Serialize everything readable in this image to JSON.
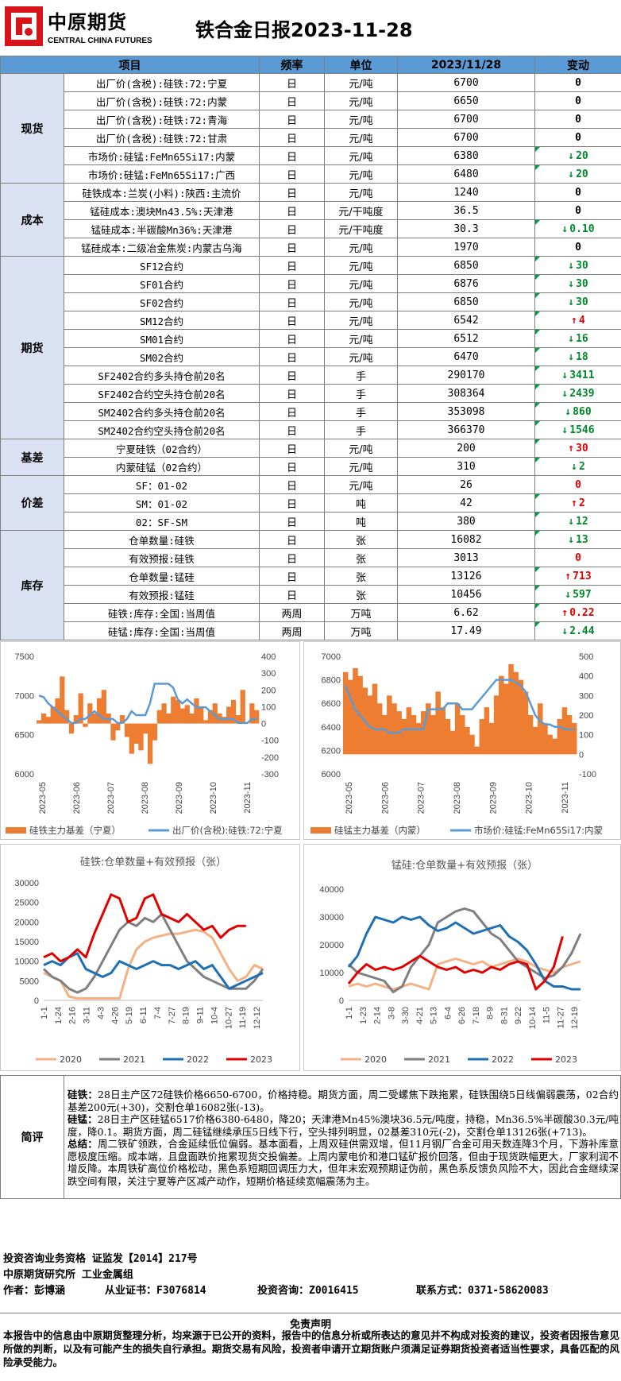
{
  "header": {
    "brand_cn": "中原期货",
    "brand_en": "CENTRAL CHINA FUTURES",
    "title": "铁合金日报2023-11-28"
  },
  "table": {
    "columns": [
      "项目",
      "频率",
      "单位",
      "2023/11/28",
      "变动"
    ],
    "sections": [
      {
        "name": "现货",
        "rows": [
          {
            "item": "出厂价(含税):硅铁:72:宁夏",
            "freq": "日",
            "unit": "元/吨",
            "value": "6700",
            "change": "0",
            "dir": "none"
          },
          {
            "item": "出厂价(含税):硅铁:72:内蒙",
            "freq": "日",
            "unit": "元/吨",
            "value": "6650",
            "change": "0",
            "dir": "none"
          },
          {
            "item": "出厂价(含税):硅铁:72:青海",
            "freq": "日",
            "unit": "元/吨",
            "value": "6700",
            "change": "0",
            "dir": "none"
          },
          {
            "item": "出厂价(含税):硅铁:72:甘肃",
            "freq": "日",
            "unit": "元/吨",
            "value": "6700",
            "change": "0",
            "dir": "none"
          },
          {
            "item": "市场价:硅锰:FeMn65Si17:内蒙",
            "freq": "日",
            "unit": "元/吨",
            "value": "6380",
            "change": "20",
            "dir": "down"
          },
          {
            "item": "市场价:硅锰:FeMn65Si17:广西",
            "freq": "日",
            "unit": "元/吨",
            "value": "6480",
            "change": "20",
            "dir": "down"
          }
        ]
      },
      {
        "name": "成本",
        "rows": [
          {
            "item": "硅铁成本:兰炭(小料):陕西:主流价",
            "freq": "日",
            "unit": "元/吨",
            "value": "1240",
            "change": "0",
            "dir": "none"
          },
          {
            "item": "锰硅成本:澳块Mn43.5%:天津港",
            "freq": "日",
            "unit": "元/干吨度",
            "value": "36.5",
            "change": "0",
            "dir": "none"
          },
          {
            "item": "锰硅成本:半碳酸Mn36%:天津港",
            "freq": "日",
            "unit": "元/干吨度",
            "value": "30.3",
            "change": "0.10",
            "dir": "down"
          },
          {
            "item": "锰硅成本:二级冶金焦炭:内蒙古乌海",
            "freq": "日",
            "unit": "元/吨",
            "value": "1970",
            "change": "0",
            "dir": "none"
          }
        ]
      },
      {
        "name": "期货",
        "rows": [
          {
            "item": "SF12合约",
            "freq": "日",
            "unit": "元/吨",
            "value": "6850",
            "change": "30",
            "dir": "down"
          },
          {
            "item": "SF01合约",
            "freq": "日",
            "unit": "元/吨",
            "value": "6876",
            "change": "30",
            "dir": "down"
          },
          {
            "item": "SF02合约",
            "freq": "日",
            "unit": "元/吨",
            "value": "6850",
            "change": "30",
            "dir": "down"
          },
          {
            "item": "SM12合约",
            "freq": "日",
            "unit": "元/吨",
            "value": "6542",
            "change": "4",
            "dir": "up"
          },
          {
            "item": "SM01合约",
            "freq": "日",
            "unit": "元/吨",
            "value": "6512",
            "change": "16",
            "dir": "down"
          },
          {
            "item": "SM02合约",
            "freq": "日",
            "unit": "元/吨",
            "value": "6470",
            "change": "18",
            "dir": "down"
          },
          {
            "item": "SF2402合约多头持仓前20名",
            "freq": "日",
            "unit": "手",
            "value": "290170",
            "change": "3411",
            "dir": "down"
          },
          {
            "item": "SF2402合约空头持仓前20名",
            "freq": "日",
            "unit": "手",
            "value": "308364",
            "change": "2439",
            "dir": "down"
          },
          {
            "item": "SM2402合约多头持仓前20名",
            "freq": "日",
            "unit": "手",
            "value": "353098",
            "change": "860",
            "dir": "down"
          },
          {
            "item": "SM2402合约空头持仓前20名",
            "freq": "日",
            "unit": "手",
            "value": "366370",
            "change": "1546",
            "dir": "down"
          }
        ]
      },
      {
        "name": "基差",
        "rows": [
          {
            "item": "宁夏硅铁（02合约）",
            "freq": "日",
            "unit": "元/吨",
            "value": "200",
            "change": "30",
            "dir": "up"
          },
          {
            "item": "内蒙硅锰（02合约）",
            "freq": "日",
            "unit": "元/吨",
            "value": "310",
            "change": "2",
            "dir": "down"
          }
        ]
      },
      {
        "name": "价差",
        "rows": [
          {
            "item": "SF：01-02",
            "freq": "日",
            "unit": "元/吨",
            "value": "26",
            "change": "0",
            "dir": "zero-red"
          },
          {
            "item": "SM：01-02",
            "freq": "日",
            "unit": "吨",
            "value": "42",
            "change": "2",
            "dir": "up"
          },
          {
            "item": "02：SF-SM",
            "freq": "日",
            "unit": "吨",
            "value": "380",
            "change": "12",
            "dir": "down"
          }
        ]
      },
      {
        "name": "库存",
        "rows": [
          {
            "item": "仓单数量:硅铁",
            "freq": "日",
            "unit": "张",
            "value": "16082",
            "change": "13",
            "dir": "down"
          },
          {
            "item": "有效预报:硅铁",
            "freq": "日",
            "unit": "张",
            "value": "3013",
            "change": "0",
            "dir": "zero-red"
          },
          {
            "item": "仓单数量:锰硅",
            "freq": "日",
            "unit": "张",
            "value": "13126",
            "change": "713",
            "dir": "up"
          },
          {
            "item": "有效预报:锰硅",
            "freq": "日",
            "unit": "张",
            "value": "10456",
            "change": "597",
            "dir": "down"
          },
          {
            "item": "硅铁:库存:全国:当周值",
            "freq": "两周",
            "unit": "万吨",
            "value": "6.62",
            "change": "0.22",
            "dir": "up"
          },
          {
            "item": "硅锰:库存:全国:当周值",
            "freq": "两周",
            "unit": "万吨",
            "value": "17.49",
            "change": "2.44",
            "dir": "down"
          }
        ]
      }
    ]
  },
  "chart_data": [
    {
      "type": "area+line",
      "title": "",
      "x_ticks": [
        "2023-05",
        "2023-06",
        "2023-07",
        "2023-08",
        "2023-09",
        "2023-10",
        "2023-11"
      ],
      "y_left_ticks": [
        "7500",
        "7000",
        "6500",
        "6000"
      ],
      "y_left_range": [
        6000,
        7500
      ],
      "y_right_ticks": [
        "400",
        "300",
        "200",
        "100",
        "0",
        "-100",
        "-200",
        "-300"
      ],
      "y_right_range": [
        -300,
        400
      ],
      "series": [
        {
          "name": "硅铁主力基差（宁夏）",
          "axis": "right",
          "type": "area",
          "color": "#ed7d31",
          "values": [
            20,
            60,
            40,
            100,
            150,
            280,
            80,
            -60,
            50,
            180,
            -20,
            120,
            60,
            150,
            200,
            60,
            -100,
            -40,
            50,
            -80,
            -180,
            -120,
            -160,
            -60,
            -240,
            -100,
            80,
            120,
            60,
            160,
            140,
            90,
            110,
            60,
            150,
            100,
            20,
            80,
            120,
            60,
            40,
            100,
            140,
            50,
            200,
            0,
            120,
            80
          ]
        },
        {
          "name": "出厂价(含税):硅铁:72:宁夏",
          "axis": "left",
          "type": "line",
          "color": "#5b9bd5",
          "values": [
            7000,
            6980,
            6900,
            6850,
            6800,
            6750,
            6700,
            6650,
            6650,
            6700,
            6700,
            6750,
            6800,
            6750,
            6700,
            6700,
            6700,
            6650,
            6650,
            6700,
            6800,
            6750,
            6750,
            6750,
            6900,
            7150,
            7150,
            7150,
            7150,
            7100,
            6950,
            6900,
            6950,
            6900,
            6850,
            6850,
            6850,
            6800,
            6750,
            6700,
            6700,
            6700,
            6700,
            6650,
            6650,
            6650,
            6700,
            6700
          ]
        }
      ]
    },
    {
      "type": "area+line",
      "title": "",
      "x_ticks": [
        "2023-05",
        "2023-06",
        "2023-07",
        "2023-08",
        "2023-09",
        "2023-10",
        "2023-11"
      ],
      "y_left_ticks": [
        "7000",
        "6800",
        "6600",
        "6400",
        "6200",
        "6000"
      ],
      "y_left_range": [
        6000,
        7000
      ],
      "y_right_ticks": [
        "500",
        "400",
        "300",
        "200",
        "100",
        "0",
        "-100"
      ],
      "y_right_range": [
        -100,
        500
      ],
      "series": [
        {
          "name": "硅锰主力基差（内蒙）",
          "axis": "right",
          "type": "area",
          "color": "#ed7d31",
          "values": [
            420,
            380,
            440,
            400,
            340,
            300,
            360,
            260,
            200,
            300,
            260,
            220,
            180,
            240,
            200,
            160,
            220,
            260,
            200,
            320,
            240,
            180,
            120,
            260,
            200,
            140,
            100,
            40,
            180,
            240,
            160,
            300,
            400,
            360,
            460,
            420,
            380,
            320,
            200,
            140,
            260,
            160,
            100,
            80,
            180,
            240,
            200,
            160
          ]
        },
        {
          "name": "市场价:硅锰:FeMn65Si17:内蒙",
          "axis": "left",
          "type": "line",
          "color": "#5b9bd5",
          "values": [
            6750,
            6650,
            6550,
            6500,
            6450,
            6400,
            6380,
            6380,
            6380,
            6350,
            6350,
            6350,
            6380,
            6380,
            6380,
            6380,
            6380,
            6550,
            6550,
            6550,
            6550,
            6600,
            6600,
            6600,
            6550,
            6550,
            6550,
            6600,
            6650,
            6700,
            6750,
            6800,
            6800,
            6800,
            6800,
            6780,
            6750,
            6700,
            6600,
            6500,
            6450,
            6420,
            6420,
            6400,
            6400,
            6380,
            6380,
            6380
          ]
        }
      ]
    },
    {
      "type": "line",
      "title": "硅铁:仓单数量+有效预报（张）",
      "x_ticks": [
        "1-1",
        "1-24",
        "2-16",
        "3-11",
        "4-3",
        "4-26",
        "5-19",
        "6-11",
        "7-4",
        "7-27",
        "8-19",
        "9-11",
        "10-4",
        "10-27",
        "11-19",
        "12-12"
      ],
      "y_ticks": [
        "30000",
        "25000",
        "20000",
        "15000",
        "10000",
        "5000",
        "0"
      ],
      "y_range": [
        0,
        30000
      ],
      "series": [
        {
          "name": "2020",
          "color": "#f4b183",
          "values": [
            7000,
            6000,
            5000,
            1000,
            500,
            500,
            500,
            500,
            500,
            500,
            8000,
            13000,
            15000,
            16000,
            16500,
            17000,
            17000,
            17500,
            18000,
            17500,
            16000,
            12000,
            8000,
            5000,
            6000,
            9000,
            8000
          ]
        },
        {
          "name": "2021",
          "color": "#7f7f7f",
          "values": [
            8000,
            6000,
            5000,
            3000,
            2000,
            3000,
            6000,
            10000,
            14000,
            18000,
            20000,
            19000,
            21000,
            20000,
            22000,
            18000,
            14000,
            10000,
            8000,
            6000,
            5000,
            4000,
            3000,
            3000,
            3000,
            5000,
            8000
          ]
        },
        {
          "name": "2022",
          "color": "#1f6fb5",
          "values": [
            9000,
            10000,
            9000,
            11000,
            12000,
            8000,
            7000,
            6000,
            7000,
            10000,
            9000,
            8000,
            9000,
            10000,
            9000,
            9000,
            8000,
            9000,
            10000,
            8000,
            9000,
            6000,
            3000,
            4000,
            5000,
            6000,
            7000
          ]
        },
        {
          "name": "2023",
          "color": "#e00000",
          "values": [
            11000,
            12000,
            10000,
            11000,
            13000,
            11000,
            17000,
            22000,
            27000,
            26000,
            20000,
            21000,
            26000,
            27000,
            22000,
            21000,
            20000,
            22000,
            20000,
            18000,
            19000,
            16000,
            18000,
            19000,
            19000
          ]
        }
      ]
    },
    {
      "type": "line",
      "title": "锰硅:仓单数量+有效预报（张）",
      "x_ticks": [
        "1-1",
        "1-23",
        "2-14",
        "3-8",
        "3-30",
        "4-21",
        "5-13",
        "6-4",
        "6-26",
        "7-18",
        "8-9",
        "8-31",
        "9-22",
        "10-14",
        "11-5",
        "11-27",
        "12-19"
      ],
      "y_ticks": [
        "40000",
        "30000",
        "20000",
        "10000",
        "0"
      ],
      "y_range": [
        0,
        40000
      ],
      "series": [
        {
          "name": "2020",
          "color": "#f4b183",
          "values": [
            5000,
            6000,
            5000,
            6000,
            5000,
            4000,
            5000,
            6000,
            5000,
            4000,
            13000,
            14000,
            15000,
            14000,
            13000,
            14000,
            12000,
            13000,
            14000,
            15000,
            14000,
            12000,
            11000,
            10000,
            12000,
            13000,
            14000
          ]
        },
        {
          "name": "2021",
          "color": "#7f7f7f",
          "values": [
            13000,
            10000,
            9000,
            8000,
            7000,
            3000,
            5000,
            12000,
            16000,
            20000,
            28000,
            30000,
            32000,
            33000,
            32000,
            28000,
            24000,
            22000,
            18000,
            14000,
            12000,
            10000,
            8000,
            9000,
            12000,
            17000,
            24000
          ]
        },
        {
          "name": "2022",
          "color": "#1f6fb5",
          "values": [
            12000,
            16000,
            24000,
            30000,
            29000,
            28000,
            30000,
            29000,
            30000,
            27000,
            25000,
            26000,
            28000,
            26000,
            24000,
            25000,
            26000,
            27000,
            23000,
            21000,
            18000,
            13000,
            7000,
            5000,
            5000,
            4000,
            4000
          ]
        },
        {
          "name": "2023",
          "color": "#e00000",
          "values": [
            6000,
            10000,
            13000,
            11000,
            12000,
            11000,
            12000,
            14000,
            16000,
            14000,
            12000,
            11000,
            12000,
            10000,
            11000,
            10000,
            12000,
            11000,
            13000,
            14000,
            13000,
            4000,
            7000,
            12000,
            23000
          ]
        }
      ]
    }
  ],
  "comment": {
    "label": "简评",
    "p1_head": "硅铁：",
    "p1": "28日主产区72硅铁价格6650-6700，价格持稳。期货方面，周二受螺焦下跌拖累，硅铁围绕5日线偏弱震荡，02合约基差200元(+30)，交割仓单16082张(-13)。",
    "p2_head": "硅锰：",
    "p2": "28日主产区硅锰6517价格6380-6480，降20；天津港Mn45%澳块36.5元/吨度，持稳，Mn36.5%半碳酸30.3元/吨度，降0.1。期货方面，周二硅锰继续承压5日线下行，空头排列明显，02基差310元(-2)，交割仓单13126张(+713)。",
    "p3_head": "总结：",
    "p3": "周二铁矿领跌，合金延续低位偏弱。基本面看，上周双硅供需双增，但11月钢厂合金可用天数连降3个月，下游补库意愿极度压缩。成本端，且盘面跌价拖累现货交投偏差。上周内蒙电价和港口锰矿报价回落，但由于现货跌幅更大，厂家利润不增反降。本周铁矿高位价格松动，黑色系短期回调压力大，但年末宏观预期证伪前，黑色系反馈负风险不大，因此合金继续深跌空间有限，关注宁夏等产区减产动作，短期价格延续宽幅震荡为主。"
  },
  "footer": {
    "line1": "投资咨询业务资格   证监发【2014】217号",
    "line2": "中原期货研究所    工业金属组",
    "author": "作者：彭博涵",
    "cert": "从业证书：F3076814",
    "advisory": "投资咨询：Z0016415",
    "contact": "联系方式：0371-58620083",
    "disclaimer_title": "免责声明",
    "disclaimer": "本报告中的信息由中原期货整理分析，均来源于已公开的资料，报告中的信息分析或所表达的意见并不构成对投资的建议，投资者因报告意见所做的判断，以及有可能产生的损失自行承担。期货交易有风险，投资者申请开立期货账户须满足证券期货投资者适当性要求，具备匹配的风险承受能力。"
  }
}
